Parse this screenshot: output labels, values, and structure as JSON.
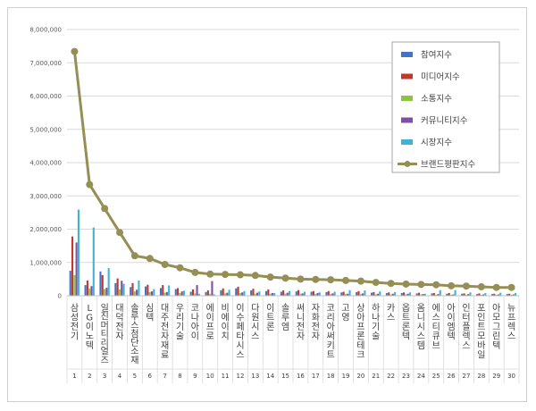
{
  "chart_data": {
    "type": "bar",
    "grid": true,
    "legend_position": "top-right",
    "ylim": [
      0,
      8000000
    ],
    "y_ticks": [
      "0",
      "1,000,000",
      "2,000,000",
      "3,000,000",
      "4,000,000",
      "5,000,000",
      "6,000,000",
      "7,000,000",
      "8,000,000"
    ],
    "categories": [
      "삼성전기",
      "LG이노텍",
      "일진머티리얼즈",
      "대덕전자",
      "솔루스첨단소재",
      "심텍",
      "대주전자재료",
      "우리기술",
      "코나아이",
      "에이프로",
      "비에이치",
      "이수페타시스",
      "다원시스",
      "이트론",
      "솔루엠",
      "써니전자",
      "자화전자",
      "코리아써키트",
      "고영",
      "상아프론테크",
      "하나기술",
      "카스",
      "옵트론텍",
      "옴니시스템",
      "에스티큐브",
      "아이엠텍",
      "인터플렉스",
      "포인트모바일",
      "아모그린텍",
      "뉴프렉스"
    ],
    "category_numbers": [
      "1",
      "2",
      "3",
      "4",
      "5",
      "6",
      "7",
      "8",
      "9",
      "10",
      "11",
      "12",
      "13",
      "14",
      "15",
      "16",
      "17",
      "18",
      "19",
      "20",
      "21",
      "22",
      "23",
      "24",
      "25",
      "26",
      "27",
      "28",
      "29",
      "30"
    ],
    "series": [
      {
        "name": "참여지수",
        "kind": "bar",
        "color": "#4472c4",
        "values": [
          750000,
          320000,
          730000,
          380000,
          260000,
          280000,
          230000,
          200000,
          120000,
          110000,
          160000,
          220000,
          160000,
          140000,
          120000,
          130000,
          120000,
          110000,
          100000,
          110000,
          90000,
          80000,
          80000,
          70000,
          70000,
          60000,
          60000,
          50000,
          50000,
          50000
        ]
      },
      {
        "name": "미디어지수",
        "kind": "bar",
        "color": "#c0392b",
        "values": [
          1780000,
          460000,
          620000,
          520000,
          380000,
          330000,
          320000,
          230000,
          190000,
          160000,
          220000,
          270000,
          210000,
          190000,
          160000,
          170000,
          140000,
          140000,
          120000,
          140000,
          110000,
          100000,
          100000,
          90000,
          80000,
          80000,
          70000,
          70000,
          60000,
          60000
        ]
      },
      {
        "name": "소통지수",
        "kind": "bar",
        "color": "#8cc63f",
        "values": [
          620000,
          220000,
          200000,
          190000,
          130000,
          110000,
          90000,
          80000,
          70000,
          60000,
          70000,
          80000,
          60000,
          60000,
          60000,
          60000,
          50000,
          50000,
          50000,
          50000,
          40000,
          40000,
          40000,
          40000,
          30000,
          30000,
          30000,
          30000,
          30000,
          30000
        ]
      },
      {
        "name": "커뮤니티지수",
        "kind": "bar",
        "color": "#7f4fa8",
        "values": [
          1600000,
          290000,
          240000,
          450000,
          180000,
          130000,
          110000,
          130000,
          320000,
          440000,
          90000,
          100000,
          90000,
          80000,
          90000,
          70000,
          80000,
          70000,
          60000,
          70000,
          60000,
          60000,
          60000,
          50000,
          50000,
          40000,
          50000,
          40000,
          40000,
          40000
        ]
      },
      {
        "name": "시장지수",
        "kind": "bar",
        "color": "#3fb4d2",
        "values": [
          2590000,
          2050000,
          830000,
          360000,
          460000,
          200000,
          310000,
          150000,
          60000,
          40000,
          180000,
          140000,
          130000,
          80000,
          140000,
          120000,
          100000,
          120000,
          170000,
          160000,
          130000,
          110000,
          100000,
          60000,
          170000,
          170000,
          100000,
          80000,
          90000,
          80000
        ]
      },
      {
        "name": "브랜드평판지수",
        "kind": "line",
        "color": "#958f55",
        "values": [
          7340000,
          3340000,
          2620000,
          1900000,
          1200000,
          1120000,
          940000,
          840000,
          700000,
          650000,
          640000,
          630000,
          610000,
          560000,
          530000,
          500000,
          490000,
          480000,
          460000,
          440000,
          400000,
          370000,
          350000,
          340000,
          330000,
          300000,
          290000,
          270000,
          250000,
          250000
        ]
      }
    ]
  }
}
